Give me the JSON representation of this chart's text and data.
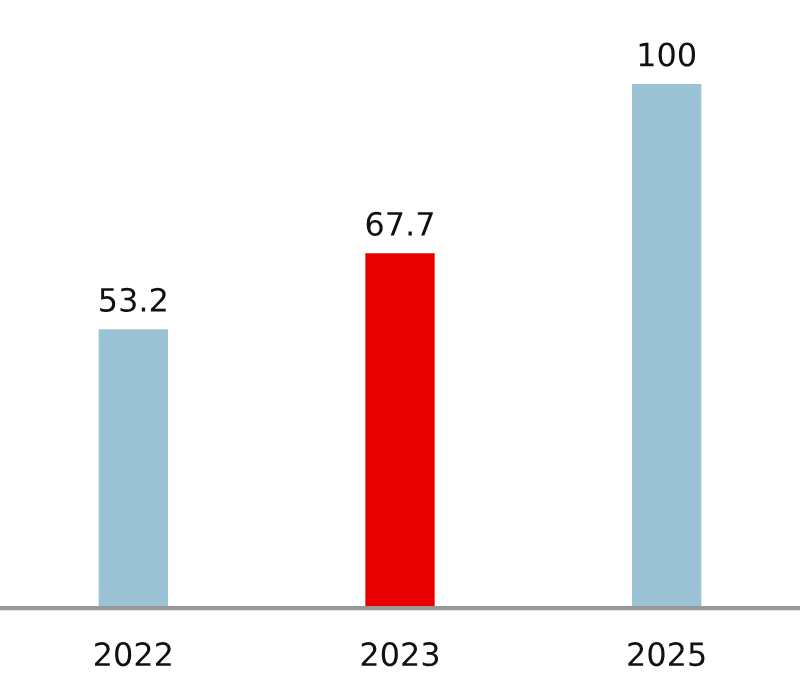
{
  "chart_data": {
    "type": "bar",
    "categories": [
      "2022",
      "2023",
      "2025"
    ],
    "values": [
      53.2,
      67.7,
      100
    ],
    "colors": [
      "#9cc3d5",
      "#e80000",
      "#9cc3d5"
    ],
    "data_labels": true,
    "grid": false,
    "legend": false
  }
}
